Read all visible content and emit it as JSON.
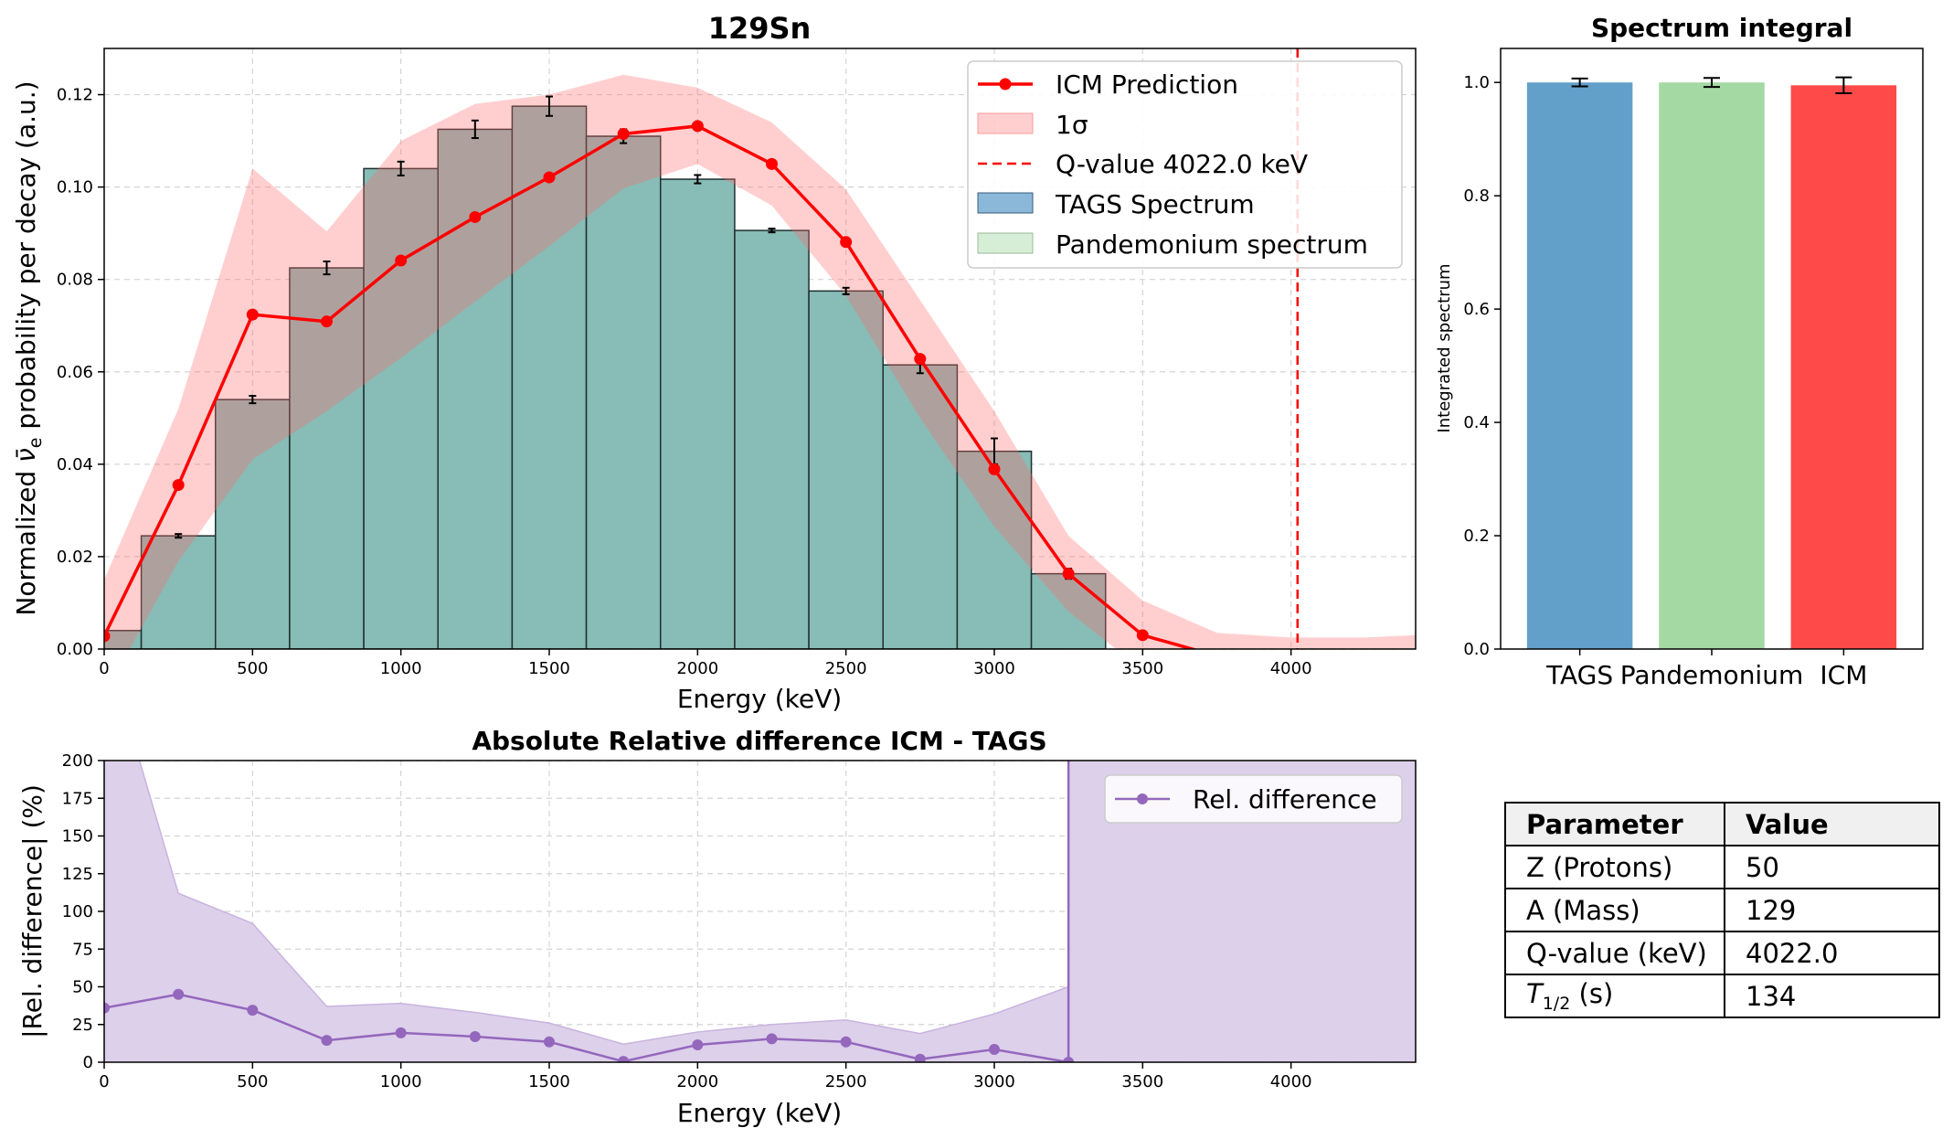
{
  "colors": {
    "icm": "#ff0000",
    "tags": "#64a0cc",
    "pandemonium": "#a4d9a4",
    "overlap": "#88bcb6",
    "band": "#ffcccc",
    "reldiff": "#9467bd",
    "reldiff_band": "#ddd0ea"
  },
  "chart_data": [
    {
      "type": "bar",
      "title": "129Sn",
      "xlabel": "Energy (keV)",
      "ylabel_parts": [
        "Normalized ",
        "ν̄",
        "e",
        " probability per decay (a.u.)"
      ],
      "xlim": [
        0,
        4420
      ],
      "ylim": [
        0,
        0.13
      ],
      "xticks": [
        0,
        500,
        1000,
        1500,
        2000,
        2500,
        3000,
        3500,
        4000
      ],
      "yticks": [
        0.0,
        0.02,
        0.04,
        0.06,
        0.08,
        0.1,
        0.12
      ],
      "ytick_labels": [
        "0.00",
        "0.02",
        "0.04",
        "0.06",
        "0.08",
        "0.10",
        "0.12"
      ],
      "grid": true,
      "legend_position": "top-right",
      "legend": {
        "icm": "ICM Prediction",
        "band": "1σ",
        "qvalue": "Q-value 4022.0 keV",
        "tags": "TAGS Spectrum",
        "pandemonium": "Pandemonium spectrum"
      },
      "bin_width": 250,
      "bin_centers": [
        0,
        250,
        500,
        750,
        1000,
        1250,
        1500,
        1750,
        2000,
        2250,
        2500,
        2750,
        3000,
        3250
      ],
      "tags_values": [
        0.004,
        0.0245,
        0.054,
        0.0825,
        0.104,
        0.1125,
        0.1175,
        0.111,
        0.1017,
        0.0906,
        0.0775,
        0.0615,
        0.0428,
        0.0163
      ],
      "tags_errors": [
        0.0,
        0.0004,
        0.0008,
        0.0014,
        0.0015,
        0.0019,
        0.0021,
        0.0015,
        0.0009,
        0.0004,
        0.0007,
        0.0018,
        0.0028,
        0.0011
      ],
      "pandemonium_values": [
        0.004,
        0.0245,
        0.054,
        0.0825,
        0.104,
        0.1125,
        0.1175,
        0.111,
        0.1017,
        0.0906,
        0.0775,
        0.0615,
        0.0428,
        0.0163
      ],
      "icm": {
        "x": [
          0,
          250,
          500,
          750,
          1000,
          1250,
          1500,
          1750,
          2000,
          2250,
          2500,
          2750,
          3000,
          3250,
          3500,
          3750,
          4000,
          4250,
          4420
        ],
        "y": [
          0.0028,
          0.0355,
          0.0724,
          0.0709,
          0.0841,
          0.0935,
          0.1021,
          0.1115,
          0.1132,
          0.105,
          0.0881,
          0.0628,
          0.0389,
          0.0163,
          0.003,
          -0.0015,
          -0.002,
          -0.002,
          -0.002
        ],
        "band_upper": [
          0.015,
          0.052,
          0.104,
          0.0904,
          0.11,
          0.118,
          0.12,
          0.1243,
          0.1215,
          0.114,
          0.0995,
          0.0755,
          0.0515,
          0.0245,
          0.0105,
          0.0035,
          0.0025,
          0.0025,
          0.003
        ],
        "band_lower": [
          -0.01,
          0.019,
          0.041,
          0.0515,
          0.063,
          0.0752,
          0.0872,
          0.0997,
          0.105,
          0.096,
          0.0765,
          0.05,
          0.0265,
          0.0081,
          -0.0045,
          -0.006,
          -0.006,
          -0.006,
          -0.006
        ]
      },
      "qvalue": 4022.0
    },
    {
      "type": "bar",
      "title": "Spectrum integral",
      "ylabel": "Integrated spectrum",
      "categories": [
        "TAGS",
        "Pandemonium",
        "ICM"
      ],
      "values": [
        1.0,
        1.0,
        0.995
      ],
      "errors": [
        0.007,
        0.008,
        0.014
      ],
      "ylim": [
        0,
        1.06
      ],
      "yticks": [
        0.0,
        0.2,
        0.4,
        0.6,
        0.8,
        1.0
      ],
      "ytick_labels": [
        "0.0",
        "0.2",
        "0.4",
        "0.6",
        "0.8",
        "1.0"
      ],
      "colors": [
        "#62a0ca",
        "#a4d9a4",
        "#ff4a4a"
      ]
    },
    {
      "type": "line",
      "title": "Absolute Relative difference ICM - TAGS",
      "xlabel": "Energy (keV)",
      "ylabel": "|Rel. difference| (%)",
      "xlim": [
        0,
        4420
      ],
      "ylim": [
        0,
        200
      ],
      "xticks": [
        0,
        500,
        1000,
        1500,
        2000,
        2500,
        3000,
        3500,
        4000
      ],
      "yticks": [
        0,
        25,
        50,
        75,
        100,
        125,
        150,
        175,
        200
      ],
      "grid": true,
      "legend_position": "top-right",
      "series": [
        {
          "name": "Rel. difference",
          "x": [
            0,
            250,
            500,
            750,
            1000,
            1250,
            1500,
            1750,
            2000,
            2250,
            2500,
            2750,
            3000,
            3250
          ],
          "values": [
            36,
            45,
            34.5,
            14.5,
            19.5,
            17,
            13.5,
            0.5,
            11.5,
            15.5,
            13.5,
            2,
            8.5,
            0
          ],
          "band_upper": [
            280,
            112,
            92,
            37,
            39,
            33,
            26,
            12,
            20,
            25,
            28,
            19,
            32,
            50
          ],
          "band_lower": [
            0,
            0,
            0,
            0,
            0,
            0,
            0,
            0,
            0,
            0,
            0,
            0,
            0,
            0
          ]
        }
      ],
      "vertical_line_x": 3250
    }
  ],
  "table": {
    "headers": [
      "Parameter",
      "Value"
    ],
    "rows": [
      {
        "param": "Z (Protons)",
        "value": "50"
      },
      {
        "param": "A (Mass)",
        "value": "129"
      },
      {
        "param": "Q-value (keV)",
        "value": "4022.0"
      }
    ],
    "half_life": {
      "symbol": "T",
      "sub": "1/2",
      "unit": " (s)",
      "value": "134"
    }
  }
}
